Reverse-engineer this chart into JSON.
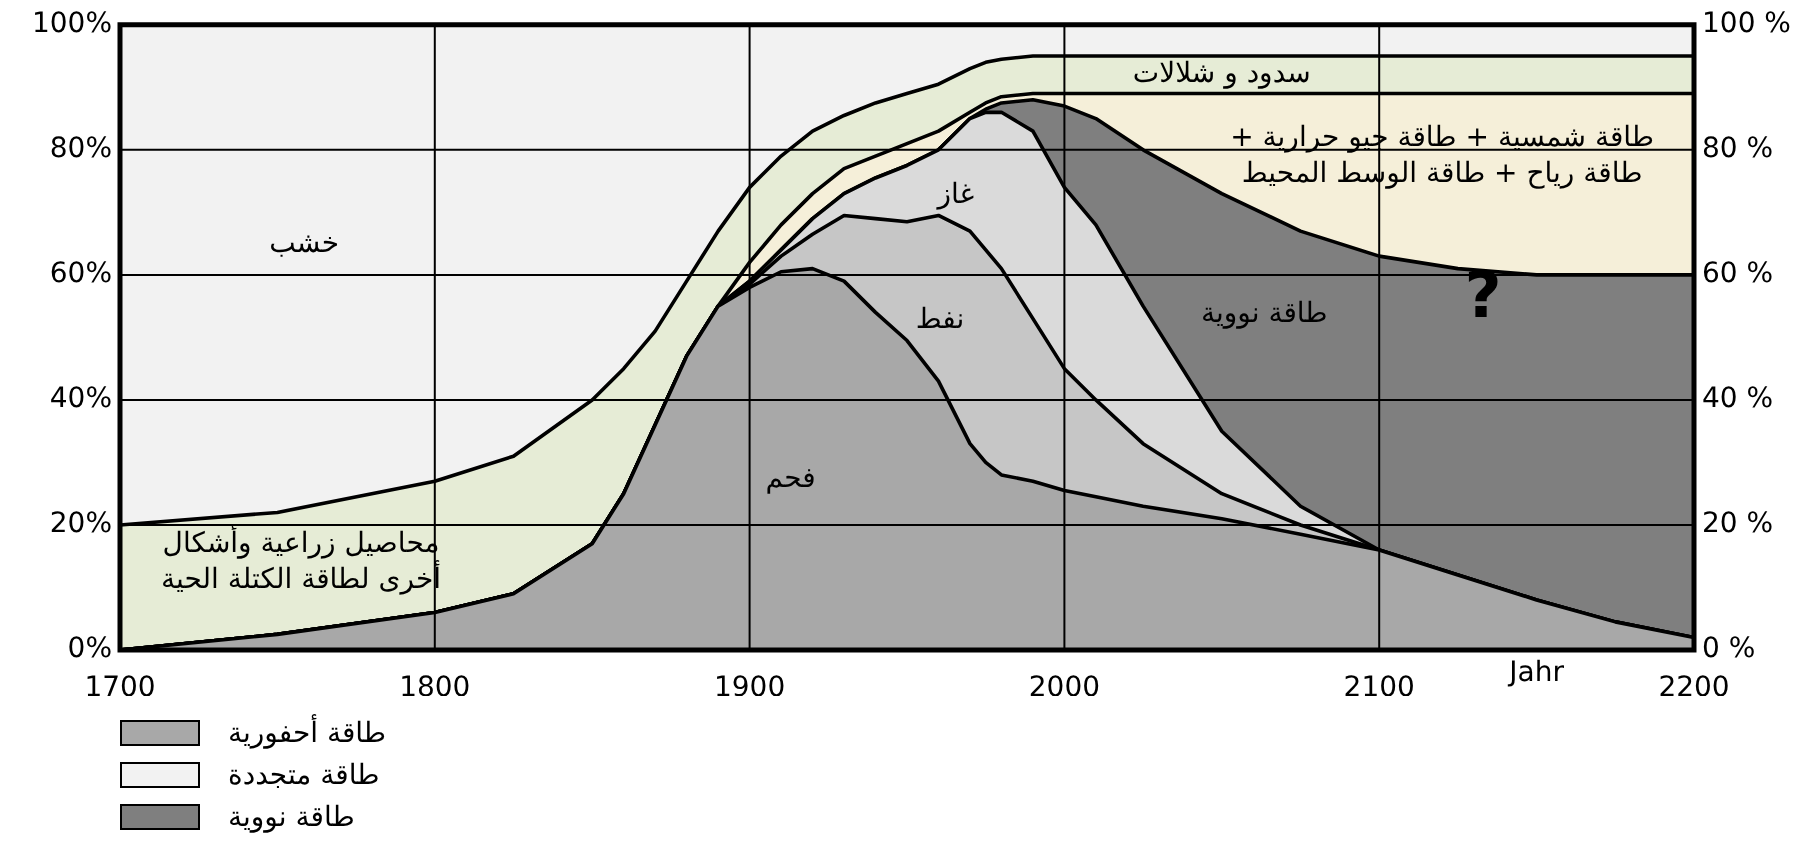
{
  "chart_data": {
    "type": "area",
    "stacked": true,
    "xlabel": "Jahr",
    "x": [
      1700,
      1750,
      1800,
      1825,
      1850,
      1860,
      1870,
      1880,
      1890,
      1900,
      1910,
      1920,
      1930,
      1940,
      1950,
      1960,
      1970,
      1975,
      1980,
      1990,
      2000,
      2010,
      2025,
      2050,
      2075,
      2100,
      2125,
      2150,
      2175,
      2200
    ],
    "series": [
      {
        "name": "فحم",
        "color": "#a8a8a8",
        "values": [
          0,
          2.5,
          6,
          9,
          17,
          25,
          36,
          47,
          55,
          58,
          60.5,
          61,
          59,
          54,
          49.5,
          43,
          33,
          30,
          28,
          27,
          25.5,
          24.5,
          23,
          21,
          18.5,
          16,
          12,
          8,
          4.5,
          2
        ]
      },
      {
        "name": "نفط",
        "color": "#c6c6c6",
        "values": [
          0,
          0,
          0,
          0,
          0,
          0,
          0,
          0,
          0,
          0.5,
          2.5,
          5.5,
          10.5,
          15,
          19,
          26.5,
          34,
          34,
          33,
          26,
          19.5,
          15.5,
          10,
          4,
          1.5,
          0,
          0,
          0,
          0,
          0
        ]
      },
      {
        "name": "غاز",
        "color": "#dadada",
        "values": [
          0,
          0,
          0,
          0,
          0,
          0,
          0,
          0,
          0,
          0.5,
          1,
          2.5,
          3.5,
          6.5,
          9,
          10.5,
          18,
          22,
          25,
          30,
          29,
          28,
          22,
          10,
          3,
          0,
          0,
          0,
          0,
          0
        ]
      },
      {
        "name": "طاقة نووية",
        "color": "#7f7f7f",
        "values": [
          0,
          0,
          0,
          0,
          0,
          0,
          0,
          0,
          0,
          0,
          0,
          0,
          0,
          0,
          0,
          0,
          0,
          0.5,
          1.5,
          5,
          13,
          17,
          25,
          38,
          44,
          47,
          49,
          52,
          55.5,
          58
        ]
      },
      {
        "name": "طاقة شمسية + طاقة جيو حرارية + طاقة رياح + طاقة الوسط المحيط",
        "color": "#f5efd9",
        "values": [
          0,
          0,
          0,
          0,
          0,
          0,
          0,
          0,
          0,
          3,
          4,
          4,
          4,
          3.5,
          3.5,
          3,
          1,
          1,
          1,
          1,
          2,
          4,
          9,
          16,
          22,
          26,
          28,
          29,
          29,
          29
        ]
      },
      {
        "name": "محاصيل زراعية وأشكال أخرى لطاقة الكتلة الحية",
        "color": "#e6ecd6",
        "values": [
          20,
          19.5,
          21,
          22,
          23,
          20,
          15,
          12,
          12,
          12,
          11,
          10,
          8.5,
          8.5,
          8,
          7.5,
          7,
          6.5,
          6,
          6,
          6,
          6,
          6,
          6,
          6,
          6,
          6,
          6,
          6,
          6
        ]
      },
      {
        "name": "خشب",
        "color": "#f2f2f2",
        "values": [
          80,
          78,
          73,
          69,
          60,
          55,
          49,
          41,
          33,
          26,
          21,
          17,
          14.5,
          12.5,
          11,
          9.5,
          7,
          6,
          5.5,
          5,
          5,
          5,
          5,
          5,
          5,
          5,
          5,
          5,
          5,
          5
        ]
      }
    ],
    "xlim": [
      1700,
      2200
    ],
    "xticks": [
      1700,
      1800,
      1900,
      2000,
      2100,
      2200
    ],
    "ylim": [
      0,
      100
    ],
    "yticks": [
      {
        "value": 0,
        "label": "0%"
      },
      {
        "value": 20,
        "label": "20%"
      },
      {
        "value": 40,
        "label": "40%"
      },
      {
        "value": 60,
        "label": "60%"
      },
      {
        "value": 80,
        "label": "80%"
      },
      {
        "value": 100,
        "label": "100%"
      }
    ],
    "y2lim": [
      0,
      100
    ],
    "y2ticks": [
      {
        "value": 0,
        "label": "0 %"
      },
      {
        "value": 20,
        "label": "20 %"
      },
      {
        "value": 40,
        "label": "40 %"
      },
      {
        "value": 60,
        "label": "60 %"
      },
      {
        "value": 80,
        "label": "80 %"
      },
      {
        "value": 100,
        "label": "100 %"
      }
    ],
    "grid": true,
    "annotations": [
      "سدود و شلالات",
      "?",
      "طاقة أحفورية",
      "طاقة متجددة",
      "طاقة نووية"
    ]
  }
}
